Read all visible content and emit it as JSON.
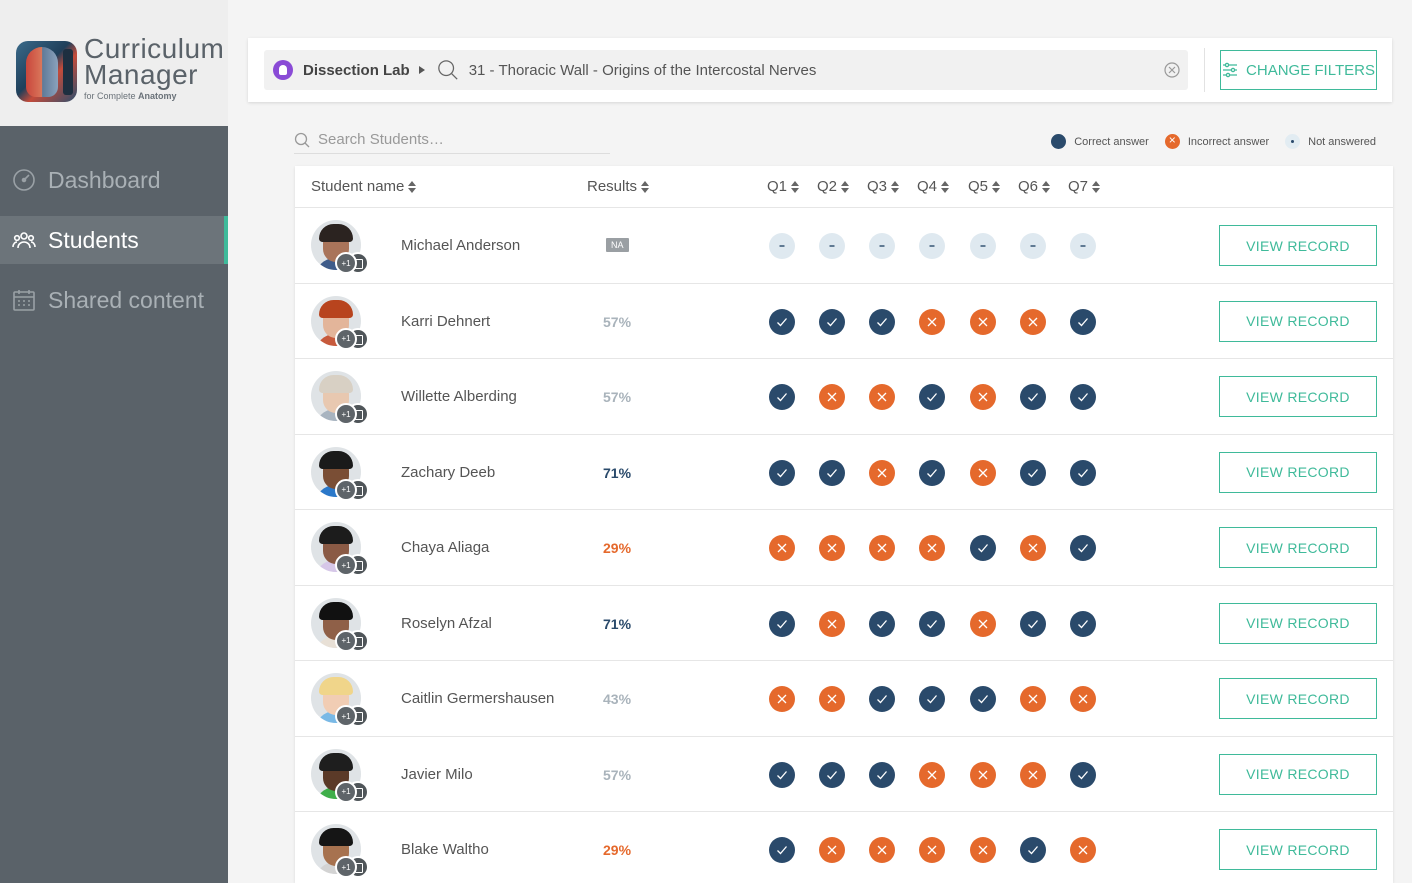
{
  "brand": {
    "title_line1": "Curriculum",
    "title_line2": "Manager",
    "sub_prefix": "for Complete",
    "sub_bold": "Anatomy"
  },
  "nav": [
    {
      "label": "Dashboard",
      "icon": "gauge-icon",
      "active": false
    },
    {
      "label": "Students",
      "icon": "people-icon",
      "active": true
    },
    {
      "label": "Shared content",
      "icon": "calendar-icon",
      "active": false
    }
  ],
  "filter": {
    "lab": "Dissection Lab",
    "topic": "31 - Thoracic Wall - Origins of the Intercostal Nerves",
    "change_label": "CHANGE FILTERS"
  },
  "search": {
    "placeholder": "Search Students…"
  },
  "legend": {
    "correct": "Correct answer",
    "incorrect": "Incorrect answer",
    "not_answered": "Not answered"
  },
  "table": {
    "headers": {
      "name": "Student name",
      "results": "Results",
      "questions": [
        "Q1",
        "Q2",
        "Q3",
        "Q4",
        "Q5",
        "Q6",
        "Q7"
      ]
    },
    "view_label": "VIEW RECORD",
    "rows": [
      {
        "name": "Michael Anderson",
        "result": "NA",
        "answers": [
          "n",
          "n",
          "n",
          "n",
          "n",
          "n",
          "n"
        ],
        "badge": "+1"
      },
      {
        "name": "Karri Dehnert",
        "result": "57%",
        "answers": [
          "c",
          "c",
          "c",
          "x",
          "x",
          "x",
          "c"
        ],
        "badge": "+1"
      },
      {
        "name": "Willette Alberding",
        "result": "57%",
        "answers": [
          "c",
          "x",
          "x",
          "c",
          "x",
          "c",
          "c"
        ],
        "badge": "+1"
      },
      {
        "name": "Zachary Deeb",
        "result": "71%",
        "answers": [
          "c",
          "c",
          "x",
          "c",
          "x",
          "c",
          "c"
        ],
        "badge": "+1"
      },
      {
        "name": "Chaya Aliaga",
        "result": "29%",
        "answers": [
          "x",
          "x",
          "x",
          "x",
          "c",
          "x",
          "c"
        ],
        "badge": "+1"
      },
      {
        "name": "Roselyn Afzal",
        "result": "71%",
        "answers": [
          "c",
          "x",
          "c",
          "c",
          "x",
          "c",
          "c"
        ],
        "badge": "+1"
      },
      {
        "name": "Caitlin Germershausen",
        "result": "43%",
        "answers": [
          "x",
          "x",
          "c",
          "c",
          "c",
          "x",
          "x"
        ],
        "badge": "+1"
      },
      {
        "name": "Javier Milo",
        "result": "57%",
        "answers": [
          "c",
          "c",
          "c",
          "x",
          "x",
          "x",
          "c"
        ],
        "badge": "+1"
      },
      {
        "name": "Blake Waltho",
        "result": "29%",
        "answers": [
          "c",
          "x",
          "x",
          "x",
          "x",
          "c",
          "x"
        ],
        "badge": "+1"
      }
    ]
  },
  "colors": {
    "accent": "#3fba9a",
    "correct": "#2a4a6b",
    "incorrect": "#e5692c",
    "result_high": "#2a4a6b",
    "result_mid": "#a9b3bb",
    "result_low": "#e5692c"
  }
}
